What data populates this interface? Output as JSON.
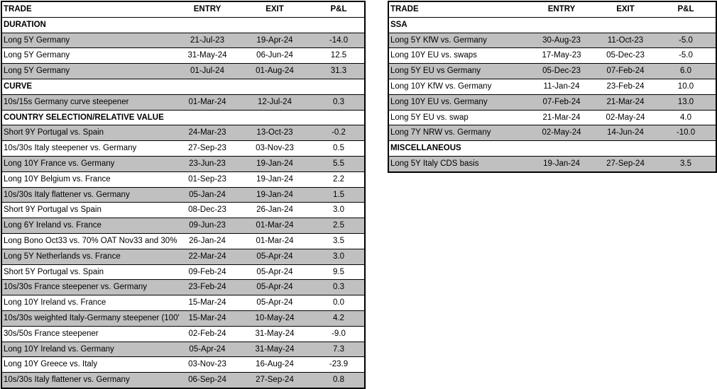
{
  "headers": {
    "trade": "TRADE",
    "entry": "ENTRY",
    "exit": "EXIT",
    "pnl": "P&L"
  },
  "left": [
    {
      "section": "DURATION"
    },
    {
      "trade": "Long 5Y Germany",
      "entry": "21-Jul-23",
      "exit": "19-Apr-24",
      "pnl": "-14.0",
      "shaded": true
    },
    {
      "trade": "Long 5Y Germany",
      "entry": "31-May-24",
      "exit": "06-Jun-24",
      "pnl": "12.5",
      "shaded": false
    },
    {
      "trade": "Long 5Y Germany",
      "entry": "01-Jul-24",
      "exit": "01-Aug-24",
      "pnl": "31.3",
      "shaded": true
    },
    {
      "section": "CURVE"
    },
    {
      "trade": "10s/15s Germany curve steepener",
      "entry": "01-Mar-24",
      "exit": "12-Jul-24",
      "pnl": "0.3",
      "shaded": true
    },
    {
      "section": "COUNTRY SELECTION/RELATIVE VALUE"
    },
    {
      "trade": "Short 9Y Portugal vs. Spain",
      "entry": "24-Mar-23",
      "exit": "13-Oct-23",
      "pnl": "-0.2",
      "shaded": true
    },
    {
      "trade": "10s/30s Italy steepener vs. Germany",
      "entry": "27-Sep-23",
      "exit": "03-Nov-23",
      "pnl": "0.5",
      "shaded": false
    },
    {
      "trade": "Long 10Y France vs. Germany",
      "entry": "23-Jun-23",
      "exit": "19-Jan-24",
      "pnl": "5.5",
      "shaded": true
    },
    {
      "trade": "Long 10Y Belgium vs. France",
      "entry": "01-Sep-23",
      "exit": "19-Jan-24",
      "pnl": "2.2",
      "shaded": false
    },
    {
      "trade": "10s/30s Italy flattener vs. Germany",
      "entry": "05-Jan-24",
      "exit": "19-Jan-24",
      "pnl": "1.5",
      "shaded": true
    },
    {
      "trade": "Short 9Y Portugal vs Spain",
      "entry": "08-Dec-23",
      "exit": "26-Jan-24",
      "pnl": "3.0",
      "shaded": false
    },
    {
      "trade": "Long 6Y Ireland vs. France",
      "entry": "09-Jun-23",
      "exit": "01-Mar-24",
      "pnl": "2.5",
      "shaded": true
    },
    {
      "trade": "Long Bono Oct33 vs. 70% OAT Nov33 and 30%",
      "entry": "26-Jan-24",
      "exit": "01-Mar-24",
      "pnl": "3.5",
      "shaded": false
    },
    {
      "trade": "Long 5Y Netherlands vs. France",
      "entry": "22-Mar-24",
      "exit": "05-Apr-24",
      "pnl": "3.0",
      "shaded": true
    },
    {
      "trade": "Short 5Y Portugal vs. Spain",
      "entry": "09-Feb-24",
      "exit": "05-Apr-24",
      "pnl": "9.5",
      "shaded": false
    },
    {
      "trade": "10s/30s France steepener vs. Germany",
      "entry": "23-Feb-24",
      "exit": "05-Apr-24",
      "pnl": "0.3",
      "shaded": true
    },
    {
      "trade": "Long 10Y Ireland vs. France",
      "entry": "15-Mar-24",
      "exit": "05-Apr-24",
      "pnl": "0.0",
      "shaded": false
    },
    {
      "trade": "10s/30s weighted Italy-Germany steepener (100'",
      "entry": "15-Mar-24",
      "exit": "10-May-24",
      "pnl": "4.2",
      "shaded": true
    },
    {
      "trade": "30s/50s France steepener",
      "entry": "02-Feb-24",
      "exit": "31-May-24",
      "pnl": "-9.0",
      "shaded": false
    },
    {
      "trade": "Long 10Y Ireland vs. Germany",
      "entry": "05-Apr-24",
      "exit": "31-May-24",
      "pnl": "7.3",
      "shaded": true
    },
    {
      "trade": "Long 10Y Greece vs. Italy",
      "entry": "03-Nov-23",
      "exit": "16-Aug-24",
      "pnl": "-23.9",
      "shaded": false
    },
    {
      "trade": "10s/30s Italy flattener vs. Germany",
      "entry": "06-Sep-24",
      "exit": "27-Sep-24",
      "pnl": "0.8",
      "shaded": true
    }
  ],
  "right": [
    {
      "section": "SSA"
    },
    {
      "trade": "Long 5Y KfW vs. Germany",
      "entry": "30-Aug-23",
      "exit": "11-Oct-23",
      "pnl": "-5.0",
      "shaded": true
    },
    {
      "trade": "Long 10Y EU vs. swaps",
      "entry": "17-May-23",
      "exit": "05-Dec-23",
      "pnl": "-5.0",
      "shaded": false
    },
    {
      "trade": "Long 5Y EU vs Germany",
      "entry": "05-Dec-23",
      "exit": "07-Feb-24",
      "pnl": "6.0",
      "shaded": true
    },
    {
      "trade": "Long 10Y KfW vs. Germany",
      "entry": "11-Jan-24",
      "exit": "23-Feb-24",
      "pnl": "10.0",
      "shaded": false
    },
    {
      "trade": "Long 10Y EU vs. Germany",
      "entry": "07-Feb-24",
      "exit": "21-Mar-24",
      "pnl": "13.0",
      "shaded": true
    },
    {
      "trade": "Long 5Y EU vs. swap",
      "entry": "21-Mar-24",
      "exit": "02-May-24",
      "pnl": "4.0",
      "shaded": false
    },
    {
      "trade": "Long 7Y NRW vs. Germany",
      "entry": "02-May-24",
      "exit": "14-Jun-24",
      "pnl": "-10.0",
      "shaded": true
    },
    {
      "section": "MISCELLANEOUS"
    },
    {
      "trade": "Long 5Y Italy CDS basis",
      "entry": "19-Jan-24",
      "exit": "27-Sep-24",
      "pnl": "3.5",
      "shaded": true
    }
  ],
  "colors": {
    "shaded": "#c0c0c0",
    "border": "#000000"
  }
}
